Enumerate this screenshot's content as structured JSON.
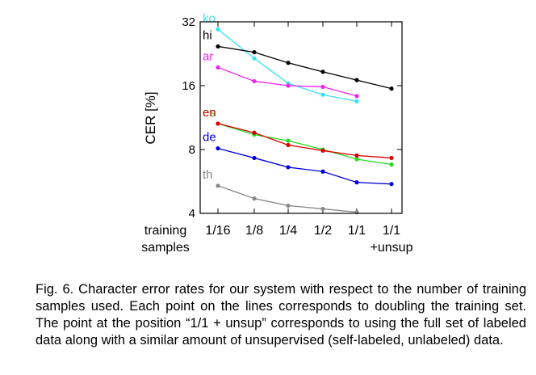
{
  "chart_data": {
    "type": "line",
    "ylabel": "CER [%]",
    "xlabel": "",
    "x_title_lines": [
      "training",
      "samples"
    ],
    "yscale": "log2",
    "ylim": [
      4,
      32
    ],
    "yticks": [
      4,
      8,
      16,
      32
    ],
    "ytick_labels": [
      "4",
      "8",
      "16",
      "32"
    ],
    "categories": [
      {
        "line1": "1/16",
        "line2": ""
      },
      {
        "line1": "1/8",
        "line2": ""
      },
      {
        "line1": "1/4",
        "line2": ""
      },
      {
        "line1": "1/2",
        "line2": ""
      },
      {
        "line1": "1/1",
        "line2": ""
      },
      {
        "line1": "1/1",
        "line2": "+unsup"
      }
    ],
    "grid": false,
    "legend": "inline-left",
    "series": [
      {
        "name": "ko",
        "color": "#33e5f0",
        "values": [
          29.5,
          21.5,
          16.4,
          14.5,
          13.5,
          null
        ]
      },
      {
        "name": "hi",
        "color": "#000000",
        "values": [
          24.5,
          23.0,
          20.5,
          18.6,
          17.0,
          15.5
        ]
      },
      {
        "name": "ar",
        "color": "#ee22ee",
        "values": [
          19.5,
          16.8,
          16.0,
          15.8,
          14.3,
          null
        ]
      },
      {
        "name": "es",
        "color": "#22dd22",
        "values": [
          10.6,
          9.4,
          8.8,
          8.0,
          7.2,
          6.8
        ]
      },
      {
        "name": "en",
        "color": "#dd0000",
        "values": [
          10.6,
          9.6,
          8.4,
          7.9,
          7.5,
          7.3
        ]
      },
      {
        "name": "de",
        "color": "#0000dd",
        "values": [
          8.1,
          7.3,
          6.6,
          6.3,
          5.6,
          5.5
        ]
      },
      {
        "name": "th",
        "color": "#888888",
        "values": [
          5.4,
          4.7,
          4.35,
          4.2,
          4.05,
          null
        ]
      }
    ]
  },
  "caption": "Fig. 6. Character error rates for our system with respect to the number of training samples used. Each point on the lines corresponds to doubling the training set. The point at the position “1/1 + unsup” corresponds to using the full set of labeled data along with a similar amount of unsupervised (self-labeled, unlabeled) data."
}
